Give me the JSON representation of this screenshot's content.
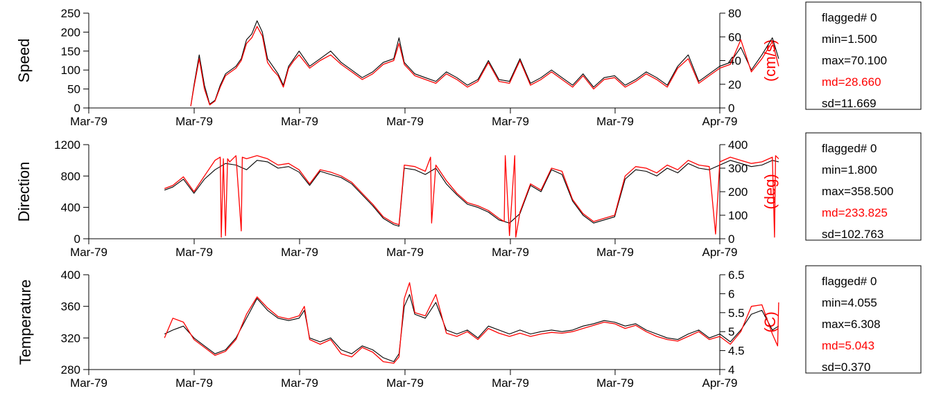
{
  "colors": {
    "black_series": "#000000",
    "red_series": "#ff0000",
    "red_text": "#ff0000"
  },
  "chart_data": [
    {
      "type": "line",
      "ylabel": "Speed",
      "ylabel_right": "(cm/s)",
      "ylim": [
        0,
        250
      ],
      "yticks": [
        0,
        50,
        100,
        150,
        200,
        250
      ],
      "ylim_right": [
        0,
        80
      ],
      "yticks_right": [
        0,
        20,
        40,
        60,
        80
      ],
      "xticklabels": [
        "Mar-79",
        "Mar-79",
        "Mar-79",
        "Mar-79",
        "Mar-79",
        "Mar-79",
        "Apr-79"
      ],
      "stats": [
        "flagged# 0",
        "min=1.500",
        "max=70.100",
        "md=28.660",
        "sd=11.669"
      ],
      "stats_highlight_index": 3,
      "series": [
        {
          "color": "#000000",
          "axis": "left",
          "x": [
            0.97,
            1.0,
            1.05,
            1.1,
            1.15,
            1.2,
            1.25,
            1.3,
            1.35,
            1.4,
            1.45,
            1.5,
            1.55,
            1.6,
            1.65,
            1.7,
            1.75,
            1.8,
            1.85,
            1.9,
            1.95,
            2.0,
            2.1,
            2.2,
            2.3,
            2.4,
            2.5,
            2.6,
            2.7,
            2.8,
            2.9,
            2.95,
            3.0,
            3.1,
            3.2,
            3.3,
            3.4,
            3.5,
            3.6,
            3.7,
            3.8,
            3.9,
            4.0,
            4.1,
            4.2,
            4.3,
            4.4,
            4.5,
            4.6,
            4.7,
            4.8,
            4.9,
            5.0,
            5.1,
            5.2,
            5.3,
            5.4,
            5.5,
            5.6,
            5.7,
            5.8,
            5.9,
            6.0,
            6.1,
            6.2,
            6.3,
            6.4,
            6.5,
            6.56
          ],
          "y": [
            5,
            60,
            140,
            60,
            10,
            20,
            60,
            90,
            100,
            110,
            130,
            180,
            195,
            230,
            200,
            130,
            110,
            90,
            60,
            110,
            130,
            150,
            110,
            130,
            150,
            120,
            100,
            80,
            95,
            120,
            130,
            185,
            120,
            90,
            80,
            70,
            95,
            80,
            60,
            75,
            125,
            75,
            70,
            130,
            65,
            80,
            100,
            80,
            60,
            90,
            55,
            80,
            85,
            60,
            75,
            95,
            80,
            60,
            110,
            140,
            70,
            90,
            110,
            120,
            160,
            100,
            140,
            185,
            130
          ]
        },
        {
          "color": "#ff0000",
          "axis": "left",
          "x": [
            0.97,
            1.0,
            1.05,
            1.1,
            1.15,
            1.2,
            1.25,
            1.3,
            1.35,
            1.4,
            1.45,
            1.5,
            1.55,
            1.6,
            1.65,
            1.7,
            1.75,
            1.8,
            1.85,
            1.9,
            1.95,
            2.0,
            2.1,
            2.2,
            2.3,
            2.4,
            2.5,
            2.6,
            2.7,
            2.8,
            2.9,
            2.95,
            3.0,
            3.1,
            3.2,
            3.3,
            3.4,
            3.5,
            3.6,
            3.7,
            3.8,
            3.9,
            4.0,
            4.1,
            4.2,
            4.3,
            4.4,
            4.5,
            4.6,
            4.7,
            4.8,
            4.9,
            5.0,
            5.1,
            5.2,
            5.3,
            5.4,
            5.5,
            5.6,
            5.7,
            5.8,
            5.9,
            6.0,
            6.1,
            6.2,
            6.3,
            6.4,
            6.5,
            6.56
          ],
          "y": [
            5,
            55,
            130,
            50,
            8,
            18,
            55,
            85,
            95,
            105,
            125,
            170,
            185,
            215,
            190,
            120,
            100,
            85,
            55,
            105,
            125,
            140,
            105,
            125,
            140,
            115,
            95,
            75,
            90,
            115,
            125,
            170,
            115,
            85,
            75,
            65,
            90,
            75,
            55,
            70,
            120,
            70,
            65,
            125,
            60,
            75,
            95,
            75,
            55,
            85,
            50,
            75,
            80,
            55,
            70,
            90,
            75,
            55,
            105,
            130,
            65,
            85,
            105,
            115,
            180,
            95,
            130,
            175,
            110
          ]
        }
      ]
    },
    {
      "type": "line",
      "ylabel": "Direction",
      "ylabel_right": "(deg)",
      "ylim": [
        0,
        1200
      ],
      "yticks": [
        0,
        400,
        800,
        1200
      ],
      "ylim_right": [
        0,
        400
      ],
      "yticks_right": [
        0,
        100,
        200,
        300,
        400
      ],
      "xticklabels": [
        "Mar-79",
        "Mar-79",
        "Mar-79",
        "Mar-79",
        "Mar-79",
        "Mar-79",
        "Apr-79"
      ],
      "stats": [
        "flagged# 0",
        "min=1.800",
        "max=358.500",
        "md=233.825",
        "sd=102.763"
      ],
      "stats_highlight_index": 3,
      "series": [
        {
          "color": "#000000",
          "axis": "left",
          "x": [
            0.72,
            0.8,
            0.9,
            1.0,
            1.1,
            1.2,
            1.3,
            1.4,
            1.5,
            1.6,
            1.7,
            1.8,
            1.9,
            2.0,
            2.1,
            2.2,
            2.3,
            2.4,
            2.5,
            2.6,
            2.7,
            2.8,
            2.9,
            2.95,
            3.0,
            3.1,
            3.2,
            3.3,
            3.4,
            3.5,
            3.6,
            3.7,
            3.8,
            3.9,
            4.0,
            4.1,
            4.2,
            4.3,
            4.4,
            4.5,
            4.6,
            4.7,
            4.8,
            4.9,
            5.0,
            5.1,
            5.2,
            5.3,
            5.4,
            5.5,
            5.6,
            5.7,
            5.8,
            5.9,
            6.0,
            6.1,
            6.2,
            6.3,
            6.4,
            6.5,
            6.56
          ],
          "y": [
            620,
            660,
            760,
            580,
            760,
            880,
            960,
            940,
            880,
            1000,
            980,
            900,
            920,
            850,
            680,
            860,
            820,
            780,
            700,
            560,
            420,
            260,
            180,
            160,
            900,
            880,
            820,
            900,
            700,
            560,
            440,
            400,
            340,
            240,
            200,
            320,
            680,
            600,
            880,
            820,
            480,
            300,
            200,
            240,
            280,
            760,
            880,
            860,
            800,
            900,
            840,
            960,
            900,
            880,
            940,
            1000,
            960,
            920,
            940,
            1000,
            980
          ]
        },
        {
          "color": "#ff0000",
          "axis": "left",
          "x": [
            0.72,
            0.8,
            0.9,
            1.0,
            1.1,
            1.2,
            1.25,
            1.26,
            1.28,
            1.3,
            1.32,
            1.34,
            1.4,
            1.45,
            1.46,
            1.5,
            1.6,
            1.7,
            1.8,
            1.9,
            2.0,
            2.1,
            2.2,
            2.3,
            2.4,
            2.5,
            2.6,
            2.7,
            2.8,
            2.9,
            2.95,
            3.0,
            3.1,
            3.2,
            3.25,
            3.26,
            3.3,
            3.4,
            3.5,
            3.6,
            3.7,
            3.8,
            3.9,
            3.95,
            3.96,
            4.0,
            4.05,
            4.06,
            4.1,
            4.2,
            4.3,
            4.4,
            4.5,
            4.6,
            4.7,
            4.8,
            4.9,
            5.0,
            5.1,
            5.2,
            5.3,
            5.4,
            5.5,
            5.6,
            5.7,
            5.8,
            5.9,
            5.95,
            5.96,
            6.0,
            6.1,
            6.2,
            6.3,
            6.4,
            6.5,
            6.52,
            6.53,
            6.56
          ],
          "y": [
            640,
            680,
            790,
            600,
            800,
            1000,
            1040,
            20,
            1020,
            40,
            1020,
            980,
            1060,
            100,
            1040,
            1020,
            1060,
            1020,
            940,
            960,
            880,
            700,
            880,
            850,
            800,
            720,
            580,
            440,
            280,
            200,
            180,
            940,
            920,
            860,
            1040,
            200,
            940,
            740,
            580,
            460,
            420,
            360,
            260,
            220,
            1060,
            40,
            1060,
            20,
            340,
            700,
            620,
            900,
            860,
            500,
            320,
            220,
            260,
            300,
            800,
            920,
            900,
            840,
            940,
            880,
            1000,
            940,
            920,
            200,
            60,
            980,
            1040,
            1000,
            960,
            980,
            1040,
            20,
            1060,
            1020
          ]
        }
      ]
    },
    {
      "type": "line",
      "ylabel": "Temperature",
      "ylabel_right": "(C)",
      "ylim": [
        280,
        400
      ],
      "yticks": [
        280,
        320,
        360,
        400
      ],
      "ylim_right": [
        4,
        6.5
      ],
      "yticks_right": [
        4,
        4.5,
        5,
        5.5,
        6,
        6.5
      ],
      "xticklabels": [
        "Mar-79",
        "Mar-79",
        "Mar-79",
        "Mar-79",
        "Mar-79",
        "Mar-79",
        "Apr-79"
      ],
      "stats": [
        "flagged# 0",
        "min=4.055",
        "max=6.308",
        "md=5.043",
        "sd=0.370"
      ],
      "stats_highlight_index": 3,
      "series": [
        {
          "color": "#000000",
          "axis": "left",
          "x": [
            0.72,
            0.8,
            0.9,
            1.0,
            1.1,
            1.2,
            1.3,
            1.4,
            1.5,
            1.6,
            1.7,
            1.8,
            1.9,
            2.0,
            2.05,
            2.1,
            2.2,
            2.3,
            2.4,
            2.5,
            2.6,
            2.7,
            2.8,
            2.9,
            2.95,
            3.0,
            3.05,
            3.1,
            3.2,
            3.3,
            3.4,
            3.5,
            3.6,
            3.7,
            3.8,
            3.9,
            4.0,
            4.1,
            4.2,
            4.3,
            4.4,
            4.5,
            4.6,
            4.7,
            4.8,
            4.9,
            5.0,
            5.1,
            5.2,
            5.3,
            5.4,
            5.5,
            5.6,
            5.7,
            5.8,
            5.9,
            6.0,
            6.1,
            6.2,
            6.3,
            6.4,
            6.5,
            6.56
          ],
          "y": [
            325,
            330,
            335,
            320,
            310,
            300,
            305,
            320,
            345,
            370,
            355,
            345,
            342,
            345,
            355,
            320,
            315,
            320,
            305,
            300,
            310,
            305,
            295,
            290,
            300,
            360,
            375,
            350,
            345,
            365,
            330,
            325,
            330,
            320,
            335,
            330,
            325,
            330,
            325,
            328,
            330,
            328,
            330,
            335,
            338,
            342,
            340,
            335,
            338,
            330,
            325,
            320,
            318,
            325,
            330,
            320,
            325,
            315,
            330,
            350,
            355,
            330,
            335
          ]
        },
        {
          "color": "#ff0000",
          "axis": "left",
          "x": [
            0.72,
            0.8,
            0.9,
            1.0,
            1.1,
            1.2,
            1.3,
            1.4,
            1.5,
            1.6,
            1.7,
            1.8,
            1.9,
            2.0,
            2.05,
            2.1,
            2.2,
            2.3,
            2.4,
            2.5,
            2.6,
            2.7,
            2.8,
            2.9,
            2.95,
            3.0,
            3.05,
            3.1,
            3.2,
            3.3,
            3.4,
            3.5,
            3.6,
            3.7,
            3.8,
            3.9,
            4.0,
            4.1,
            4.2,
            4.3,
            4.4,
            4.5,
            4.6,
            4.7,
            4.8,
            4.9,
            5.0,
            5.1,
            5.2,
            5.3,
            5.4,
            5.5,
            5.6,
            5.7,
            5.8,
            5.9,
            6.0,
            6.1,
            6.2,
            6.3,
            6.4,
            6.5,
            6.55,
            6.56
          ],
          "y": [
            320,
            345,
            340,
            318,
            308,
            298,
            303,
            318,
            350,
            372,
            358,
            347,
            344,
            348,
            360,
            318,
            312,
            318,
            300,
            296,
            308,
            302,
            290,
            288,
            296,
            370,
            390,
            352,
            348,
            375,
            326,
            322,
            328,
            318,
            332,
            326,
            322,
            326,
            322,
            325,
            327,
            326,
            328,
            332,
            336,
            340,
            338,
            332,
            336,
            328,
            322,
            318,
            316,
            322,
            328,
            318,
            322,
            312,
            328,
            360,
            362,
            325,
            310,
            365
          ]
        }
      ]
    }
  ]
}
